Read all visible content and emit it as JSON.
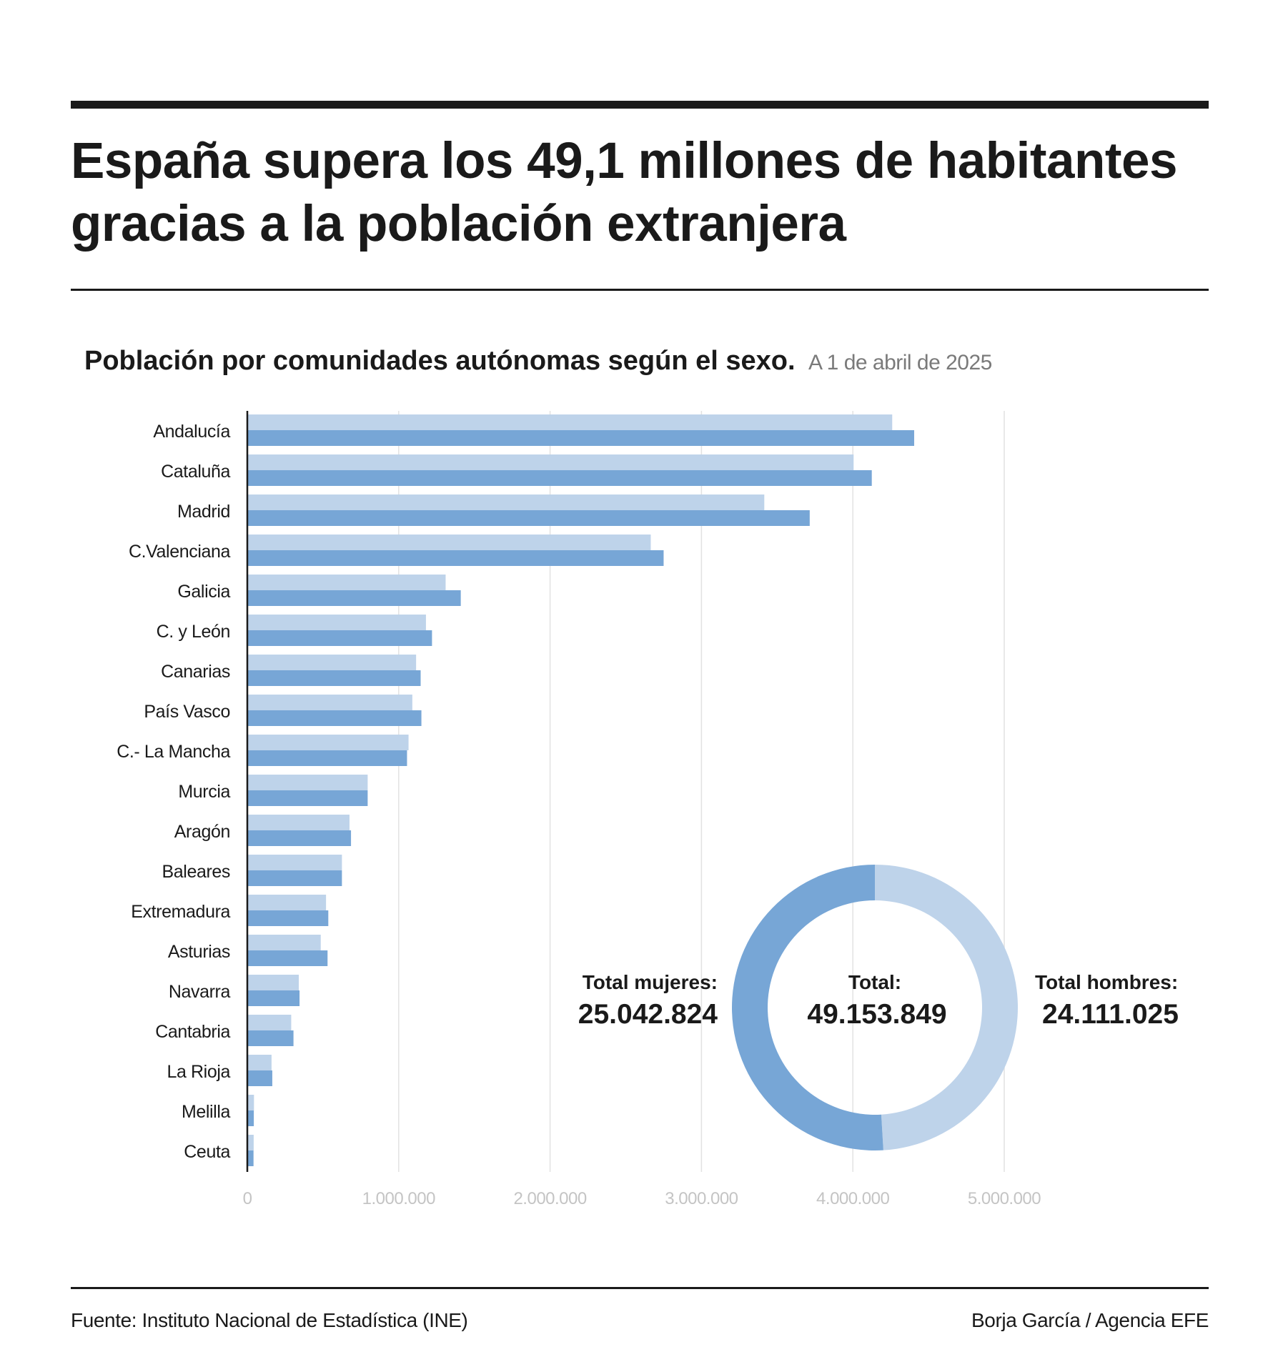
{
  "headline": {
    "line1": "España supera los 49,1 millones de habitantes",
    "line2": "gracias a la población extranjera"
  },
  "subtitle": {
    "main": "Población por comunidades autónomas según el sexo.",
    "date": "A 1 de abril de 2025"
  },
  "colors": {
    "hombres": "#bed3ea",
    "mujeres": "#77a6d6",
    "grid": "#e2e2e2",
    "axis": "#1a1a1a",
    "tick_label": "#c4c4c4"
  },
  "chart_data": [
    {
      "type": "bar",
      "orientation": "horizontal",
      "categories": [
        "Andalucía",
        "Cataluña",
        "Madrid",
        "C.Valenciana",
        "Galicia",
        "C. y León",
        "Canarias",
        "País Vasco",
        "C.- La Mancha",
        "Murcia",
        "Aragón",
        "Baleares",
        "Extremadura",
        "Asturias",
        "Navarra",
        "Cantabria",
        "La Rioja",
        "Melilla",
        "Ceuta"
      ],
      "series": [
        {
          "key": "hombres",
          "color": "#bed3ea",
          "values": [
            4260000,
            4005000,
            3415000,
            2665000,
            1310000,
            1180000,
            1115000,
            1090000,
            1065000,
            795000,
            675000,
            625000,
            520000,
            485000,
            340000,
            290000,
            160000,
            44000,
            42000
          ]
        },
        {
          "key": "mujeres",
          "color": "#77a6d6",
          "values": [
            4405000,
            4125000,
            3715000,
            2750000,
            1410000,
            1220000,
            1145000,
            1150000,
            1055000,
            795000,
            685000,
            625000,
            535000,
            530000,
            345000,
            305000,
            165000,
            43000,
            41000
          ]
        }
      ],
      "x_ticks": [
        0,
        1000000,
        2000000,
        3000000,
        4000000,
        5000000
      ],
      "x_tick_labels": [
        "0",
        "1.000.000",
        "2.000.000",
        "3.000.000",
        "4.000.000",
        "5.000.000"
      ],
      "xlim": [
        0,
        5000000
      ],
      "grid": true,
      "title": "",
      "xlabel": "",
      "ylabel": ""
    },
    {
      "type": "pie",
      "style": "donut",
      "slices": [
        {
          "key": "hombres",
          "value": 24111025,
          "color": "#bed3ea",
          "label": "Total hombres:",
          "value_label": "24.111.025"
        },
        {
          "key": "mujeres",
          "value": 25042824,
          "color": "#77a6d6",
          "label": "Total mujeres:",
          "value_label": "25.042.824"
        }
      ],
      "center_label": "Total:",
      "center_value": "49.153.849"
    }
  ],
  "footer": {
    "source": "Fuente: Instituto Nacional de Estadística (INE)",
    "credit": "Borja García / Agencia EFE"
  }
}
